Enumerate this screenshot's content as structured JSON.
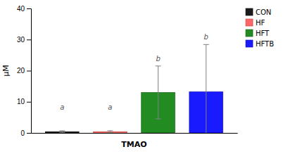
{
  "chart_data": {
    "type": "bar",
    "categories": [
      "CON",
      "HF",
      "HFT",
      "HFTB"
    ],
    "values": [
      0.4,
      0.4,
      13.0,
      13.2
    ],
    "errors": [
      0.3,
      0.3,
      8.5,
      15.2
    ],
    "colors": [
      "#1a1a1a",
      "#ff6666",
      "#228B22",
      "#1a1aff"
    ],
    "annotations": [
      {
        "text": "a",
        "x": "CON",
        "y": 7.0
      },
      {
        "text": "a",
        "x": "HF",
        "y": 7.0
      },
      {
        "text": "b",
        "x": "HFT",
        "y": 22.5
      },
      {
        "text": "b",
        "x": "HFTB",
        "y": 29.5
      }
    ],
    "xlabel": "TMAO",
    "ylabel": "μM",
    "ylim": [
      0,
      40
    ],
    "yticks": [
      0,
      10,
      20,
      30,
      40
    ],
    "grid": false,
    "legend": "upper right",
    "tick_labels": "y"
  }
}
